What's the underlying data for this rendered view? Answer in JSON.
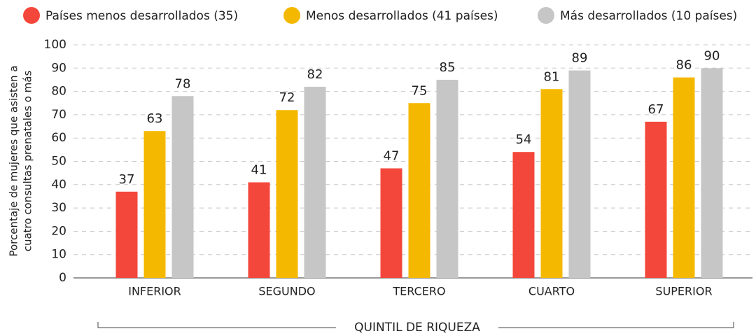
{
  "chart_data": {
    "type": "bar",
    "y_label": [
      "Porcentaje de mujeres que asisten a",
      "cuatro consultas prenatales o más"
    ],
    "x_label": "QUINTIL DE RIQUEZA",
    "categories": [
      "INFERIOR",
      "SEGUNDO",
      "TERCERO",
      "CUARTO",
      "SUPERIOR"
    ],
    "series": [
      {
        "name": "Países menos desarrollados (35)",
        "color": "#f4473b",
        "values": [
          37,
          41,
          47,
          54,
          67
        ]
      },
      {
        "name": "Menos desarrollados (41 países)",
        "color": "#f5b800",
        "values": [
          63,
          72,
          75,
          81,
          86
        ]
      },
      {
        "name": "Más desarrollados (10 países)",
        "color": "#c6c6c6",
        "values": [
          78,
          82,
          85,
          89,
          90
        ]
      }
    ],
    "ylim": [
      0,
      100
    ],
    "yticks": [
      0,
      10,
      20,
      30,
      40,
      50,
      60,
      70,
      80,
      90,
      100
    ],
    "grid": true,
    "legend": "top"
  }
}
